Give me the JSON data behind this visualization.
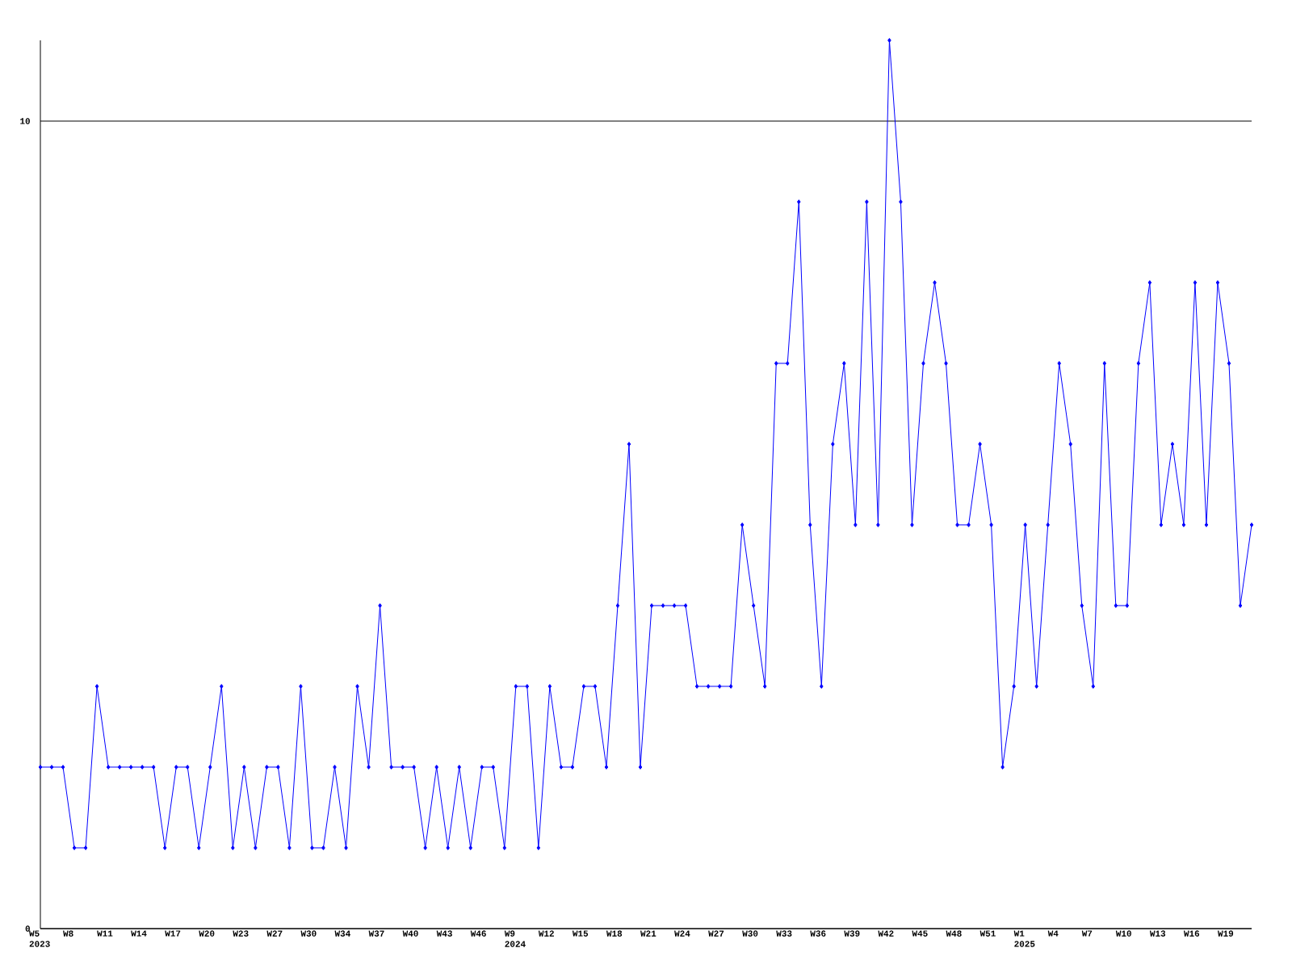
{
  "chart_data": {
    "type": "line",
    "categories": [
      "W5 2023",
      null,
      null,
      "W8",
      null,
      null,
      "W11",
      null,
      null,
      "W14",
      null,
      null,
      "W17",
      null,
      null,
      "W20",
      null,
      null,
      "W23",
      null,
      null,
      "W27",
      null,
      null,
      "W30",
      null,
      null,
      "W34",
      null,
      null,
      "W37",
      null,
      null,
      "W40",
      null,
      null,
      "W43",
      null,
      null,
      "W46",
      null,
      null,
      "W9 2024",
      null,
      null,
      "W12",
      null,
      null,
      "W15",
      null,
      null,
      "W18",
      null,
      null,
      "W21",
      null,
      null,
      "W24",
      null,
      null,
      "W27",
      null,
      null,
      "W30",
      null,
      null,
      "W33",
      null,
      null,
      "W36",
      null,
      null,
      "W39",
      null,
      null,
      "W42",
      null,
      null,
      "W45",
      null,
      null,
      "W48",
      null,
      null,
      "W51",
      null,
      null,
      "W1 2025",
      null,
      null,
      "W4",
      null,
      null,
      "W7",
      null,
      null,
      "W10",
      null,
      null,
      "W13",
      null,
      null,
      "W16",
      null,
      null,
      "W19",
      null,
      null
    ],
    "values": [
      2,
      2,
      2,
      1,
      1,
      3,
      2,
      2,
      2,
      2,
      2,
      1,
      2,
      2,
      1,
      2,
      3,
      1,
      2,
      1,
      2,
      2,
      1,
      3,
      1,
      1,
      2,
      1,
      3,
      2,
      4,
      2,
      2,
      2,
      1,
      2,
      1,
      2,
      1,
      2,
      2,
      1,
      3,
      3,
      1,
      3,
      2,
      2,
      3,
      3,
      2,
      4,
      6,
      2,
      4,
      4,
      4,
      4,
      3,
      3,
      3,
      3,
      5,
      4,
      3,
      7,
      7,
      9,
      5,
      3,
      6,
      7,
      5,
      9,
      5,
      11,
      9,
      5,
      7,
      8,
      7,
      5,
      5,
      6,
      5,
      2,
      3,
      5,
      3,
      5,
      7,
      6,
      4,
      3,
      7,
      4,
      4,
      7,
      8,
      5,
      6,
      5,
      8,
      5,
      8,
      7,
      4,
      5
    ],
    "color": "#0000ff",
    "ylim": [
      0,
      11
    ],
    "yticks": [
      0,
      10
    ],
    "grid": "y",
    "marker": "diamond",
    "line_style": "solid"
  }
}
